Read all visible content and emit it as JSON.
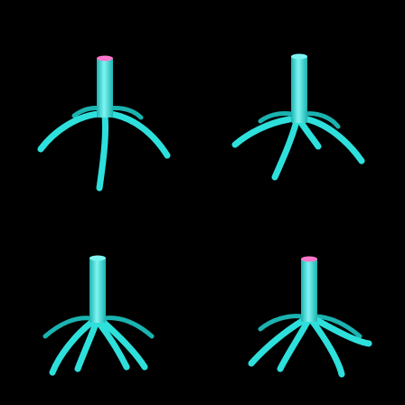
{
  "scene": {
    "background_color": "#000000",
    "object_color": "#2ee0dc",
    "object_shade_color": "#1bb3b0",
    "object_highlight_color": "#7ff5f2",
    "cap_color": "#ff77cc",
    "grid": "2x2",
    "object_count": 4,
    "objects": [
      {
        "label": "top-left",
        "cap_visible": true
      },
      {
        "label": "top-right",
        "cap_visible": false
      },
      {
        "label": "bottom-left",
        "cap_visible": false
      },
      {
        "label": "bottom-right",
        "cap_visible": true
      }
    ]
  }
}
